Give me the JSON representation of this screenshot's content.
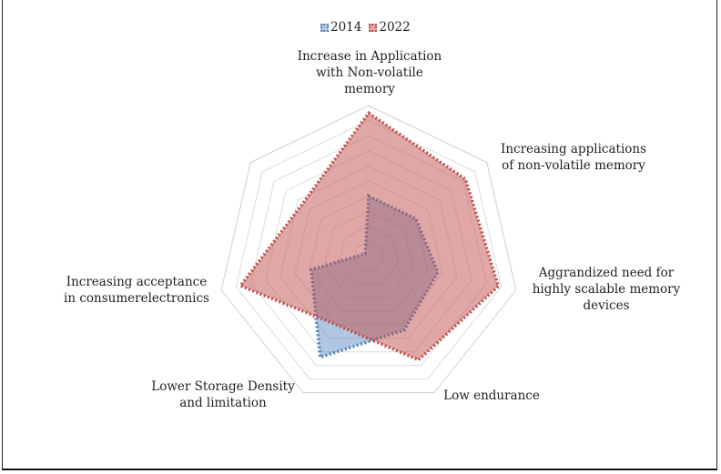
{
  "chart_data": {
    "type": "radar",
    "title": "",
    "categories": [
      "Increase in Application with Non-volatile memory",
      "Increasing applications of non-volatile memory",
      "Aggrandized need for highly scalable memory devices",
      "Low endurance",
      "Lower Storage Density and limitation",
      "Increasing acceptance in consumerelectronics",
      ""
    ],
    "category_lines": [
      [
        "Increase in Application",
        "with Non-volatile",
        "memory"
      ],
      [
        "Increasing applications",
        "of non-volatile memory"
      ],
      [
        "Aggrandized need for",
        "highly scalable memory",
        "devices"
      ],
      [
        "Low endurance"
      ],
      [
        "Lower Storage Density",
        "and limitation"
      ],
      [
        "Increasing acceptance",
        "in consumerelectronics"
      ],
      []
    ],
    "range": [
      0,
      10
    ],
    "grid": true,
    "grid_rings": 10,
    "legend_position": "top",
    "series": [
      {
        "name": "2014",
        "color": "#4f81bd",
        "fill": "rgba(79,129,189,0.45)",
        "values": [
          4.0,
          4.0,
          4.7,
          5.4,
          7.4,
          3.9,
          0.3
        ]
      },
      {
        "name": "2022",
        "color": "#c0504d",
        "fill": "rgba(192,80,77,0.5)",
        "values": [
          9.5,
          8.2,
          8.8,
          7.6,
          5.0,
          8.7,
          5.6
        ]
      }
    ]
  }
}
